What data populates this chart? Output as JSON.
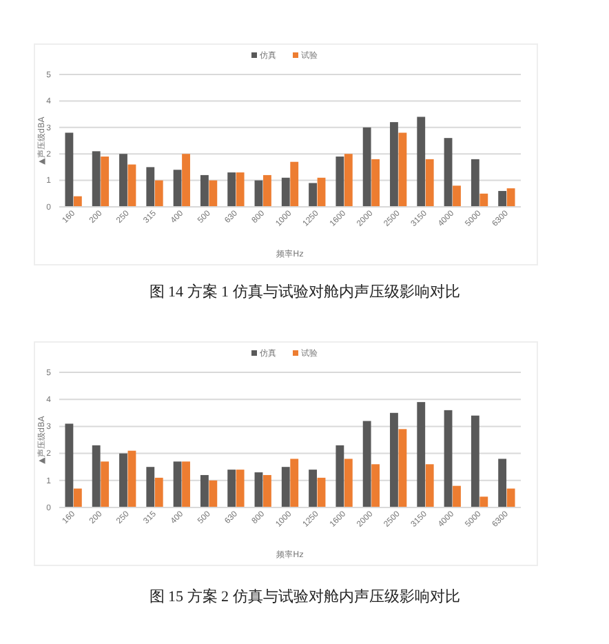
{
  "chart_data": [
    {
      "type": "bar",
      "title": "图 14 方案 1 仿真与试验对舱内声压级影响对比",
      "xlabel": "频率Hz",
      "ylabel": "▲声压级dBA",
      "categories": [
        "160",
        "200",
        "250",
        "315",
        "400",
        "500",
        "630",
        "800",
        "1000",
        "1250",
        "1600",
        "2000",
        "2500",
        "3150",
        "4000",
        "5000",
        "6300"
      ],
      "series": [
        {
          "name": "仿真",
          "color": "#595959",
          "values": [
            2.8,
            2.1,
            2.0,
            1.5,
            1.4,
            1.2,
            1.3,
            1.0,
            1.1,
            0.9,
            1.9,
            3.0,
            3.2,
            3.4,
            2.6,
            1.8,
            0.6
          ]
        },
        {
          "name": "试验",
          "color": "#ed7d31",
          "values": [
            0.4,
            1.9,
            1.6,
            1.0,
            2.0,
            1.0,
            1.3,
            1.2,
            1.7,
            1.1,
            2.0,
            1.8,
            2.8,
            1.8,
            0.8,
            0.5,
            0.7
          ]
        }
      ],
      "ylim": [
        0,
        5
      ],
      "yticks": [
        0,
        1,
        2,
        3,
        4,
        5
      ],
      "grid": "y",
      "legend": "top"
    },
    {
      "type": "bar",
      "title": "图 15 方案 2 仿真与试验对舱内声压级影响对比",
      "xlabel": "频率Hz",
      "ylabel": "▲声压级dBA",
      "categories": [
        "160",
        "200",
        "250",
        "315",
        "400",
        "500",
        "630",
        "800",
        "1000",
        "1250",
        "1600",
        "2000",
        "2500",
        "3150",
        "4000",
        "5000",
        "6300"
      ],
      "series": [
        {
          "name": "仿真",
          "color": "#595959",
          "values": [
            3.1,
            2.3,
            2.0,
            1.5,
            1.7,
            1.2,
            1.4,
            1.3,
            1.5,
            1.4,
            2.3,
            3.2,
            3.5,
            3.9,
            3.6,
            3.4,
            1.8
          ]
        },
        {
          "name": "试验",
          "color": "#ed7d31",
          "values": [
            0.7,
            1.7,
            2.1,
            1.1,
            1.7,
            1.0,
            1.4,
            1.2,
            1.8,
            1.1,
            1.8,
            1.6,
            2.9,
            1.6,
            0.8,
            0.4,
            0.7
          ]
        }
      ],
      "ylim": [
        0,
        5
      ],
      "yticks": [
        0,
        1,
        2,
        3,
        4,
        5
      ],
      "grid": "y",
      "legend": "top"
    }
  ]
}
